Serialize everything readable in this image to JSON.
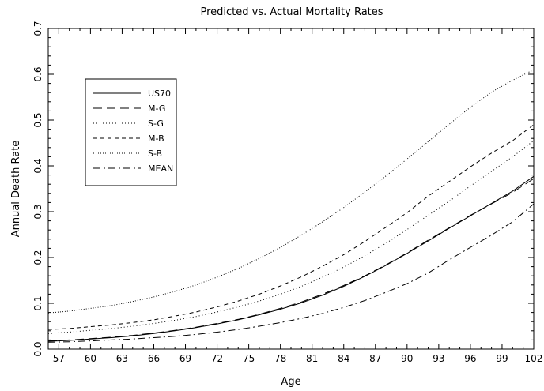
{
  "chart_data": {
    "type": "line",
    "title": "Predicted vs. Actual Mortality Rates",
    "xlabel": "Age",
    "ylabel": "Annual Death Rate",
    "xlim": [
      56,
      102
    ],
    "ylim": [
      0,
      0.7
    ],
    "xticks": [
      57,
      60,
      63,
      66,
      69,
      72,
      75,
      78,
      81,
      84,
      87,
      90,
      93,
      96,
      99,
      102
    ],
    "xtick_labels": [
      "57",
      "60",
      "63",
      "66",
      "69",
      "72",
      "75",
      "78",
      "81",
      "84",
      "87",
      "90",
      "93",
      "96",
      "99",
      "102"
    ],
    "yticks": [
      0,
      0.1,
      0.2,
      0.3,
      0.4,
      0.5,
      0.6,
      0.7
    ],
    "ytick_labels": [
      "0.0",
      "0.1",
      "0.2",
      "0.3",
      "0.4",
      "0.5",
      "0.6",
      "0.7"
    ],
    "legend_position": "upper-left",
    "grid": false,
    "x": [
      56,
      58,
      60,
      62,
      64,
      66,
      68,
      70,
      72,
      74,
      76,
      78,
      80,
      82,
      84,
      86,
      88,
      90,
      92,
      94,
      96,
      98,
      100,
      102
    ],
    "series": [
      {
        "name": "US70",
        "dash": "solid",
        "values": [
          0.017,
          0.019,
          0.022,
          0.025,
          0.029,
          0.034,
          0.04,
          0.047,
          0.055,
          0.064,
          0.075,
          0.087,
          0.101,
          0.118,
          0.137,
          0.159,
          0.183,
          0.209,
          0.236,
          0.264,
          0.291,
          0.318,
          0.345,
          0.377
        ]
      },
      {
        "name": "M-G",
        "dash": "long-dash",
        "values": [
          0.018,
          0.02,
          0.023,
          0.026,
          0.03,
          0.035,
          0.041,
          0.048,
          0.056,
          0.065,
          0.076,
          0.089,
          0.103,
          0.12,
          0.139,
          0.16,
          0.184,
          0.21,
          0.238,
          0.265,
          0.292,
          0.317,
          0.342,
          0.372
        ]
      },
      {
        "name": "S-G",
        "dash": "dotted",
        "values": [
          0.034,
          0.037,
          0.041,
          0.045,
          0.05,
          0.056,
          0.063,
          0.071,
          0.081,
          0.092,
          0.105,
          0.12,
          0.137,
          0.157,
          0.179,
          0.204,
          0.231,
          0.261,
          0.292,
          0.323,
          0.356,
          0.388,
          0.42,
          0.455
        ]
      },
      {
        "name": "M-B",
        "dash": "short-dash",
        "values": [
          0.043,
          0.045,
          0.049,
          0.053,
          0.058,
          0.064,
          0.072,
          0.081,
          0.092,
          0.105,
          0.12,
          0.138,
          0.158,
          0.181,
          0.206,
          0.235,
          0.266,
          0.298,
          0.334,
          0.366,
          0.398,
          0.428,
          0.455,
          0.49
        ]
      },
      {
        "name": "S-B",
        "dash": "fine-dotted",
        "values": [
          0.079,
          0.083,
          0.089,
          0.095,
          0.104,
          0.114,
          0.126,
          0.14,
          0.157,
          0.176,
          0.198,
          0.222,
          0.249,
          0.278,
          0.309,
          0.343,
          0.378,
          0.415,
          0.453,
          0.491,
          0.528,
          0.561,
          0.587,
          0.61
        ]
      },
      {
        "name": "MEAN",
        "dash": "dash-dot",
        "values": [
          0.015,
          0.016,
          0.018,
          0.02,
          0.022,
          0.025,
          0.028,
          0.032,
          0.037,
          0.043,
          0.05,
          0.058,
          0.067,
          0.078,
          0.091,
          0.106,
          0.124,
          0.143,
          0.166,
          0.195,
          0.222,
          0.249,
          0.278,
          0.317
        ]
      }
    ]
  }
}
